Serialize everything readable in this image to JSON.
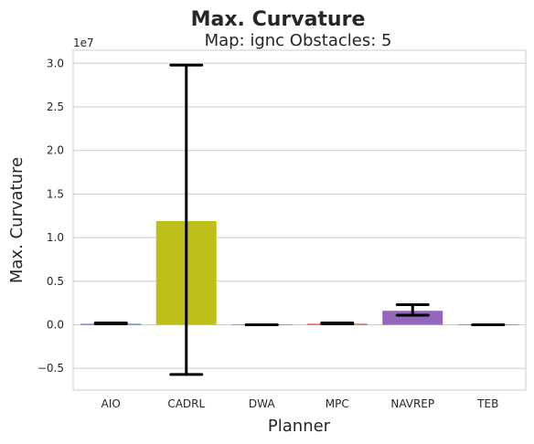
{
  "suptitle": "Max. Curvature",
  "chart_data": {
    "type": "bar",
    "title": "Map: ignc Obstacles: 5",
    "xlabel": "Planner",
    "ylabel": "Max. Curvature",
    "y_offset_label": "1e7",
    "y_scale_factor": 10000000,
    "ylim": [
      -0.75,
      3.15
    ],
    "yticks": [
      -0.5,
      0.0,
      0.5,
      1.0,
      1.5,
      2.0,
      2.5,
      3.0
    ],
    "ytick_labels": [
      "−0.5",
      "0.0",
      "0.5",
      "1.0",
      "1.5",
      "2.0",
      "2.5",
      "3.0"
    ],
    "grid": "horizontal",
    "categories": [
      "AIO",
      "CADRL",
      "DWA",
      "MPC",
      "NAVREP",
      "TEB"
    ],
    "values": [
      0.01,
      1.19,
      0.0,
      0.01,
      0.16,
      0.0
    ],
    "error_low": [
      0.01,
      -0.57,
      0.0,
      0.01,
      0.11,
      0.0
    ],
    "error_high": [
      0.02,
      2.98,
      0.0,
      0.02,
      0.23,
      0.0
    ],
    "colors": [
      "#3a5fcd",
      "#bfbf1c",
      "#2ca02c",
      "#d62728",
      "#9467bd",
      "#8c564b"
    ]
  }
}
